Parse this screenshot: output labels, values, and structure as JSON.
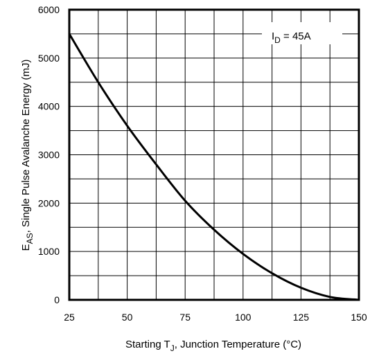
{
  "chart_data": {
    "type": "line",
    "title": "",
    "xlabel": {
      "main": "Starting T",
      "sub": "J",
      "rest": ", Junction Temperature (°C)"
    },
    "ylabel": {
      "main": "E",
      "sub": "AS",
      "rest": ", Single Pulse Avalanche Energy (mJ)"
    },
    "xlim": [
      25,
      150
    ],
    "ylim": [
      0,
      6000
    ],
    "xticks": [
      25,
      50,
      75,
      100,
      125,
      150
    ],
    "yticks": [
      0,
      1000,
      2000,
      3000,
      4000,
      5000,
      6000
    ],
    "xtick_labels": [
      "25",
      "50",
      "75",
      "100",
      "125",
      "150"
    ],
    "ytick_labels": [
      "0",
      "1000",
      "2000",
      "3000",
      "4000",
      "5000",
      "6000"
    ],
    "grid": true,
    "annotation": {
      "main": "I",
      "sub": "D",
      "rest": " = 45A",
      "placement": "top-right"
    },
    "series": [
      {
        "color": "#000000",
        "x": [
          25,
          37.5,
          50,
          62.5,
          75,
          87.5,
          100,
          112.5,
          125,
          137.5,
          150
        ],
        "y": [
          5500,
          4500,
          3600,
          2800,
          2050,
          1450,
          950,
          550,
          250,
          60,
          0
        ]
      }
    ]
  }
}
